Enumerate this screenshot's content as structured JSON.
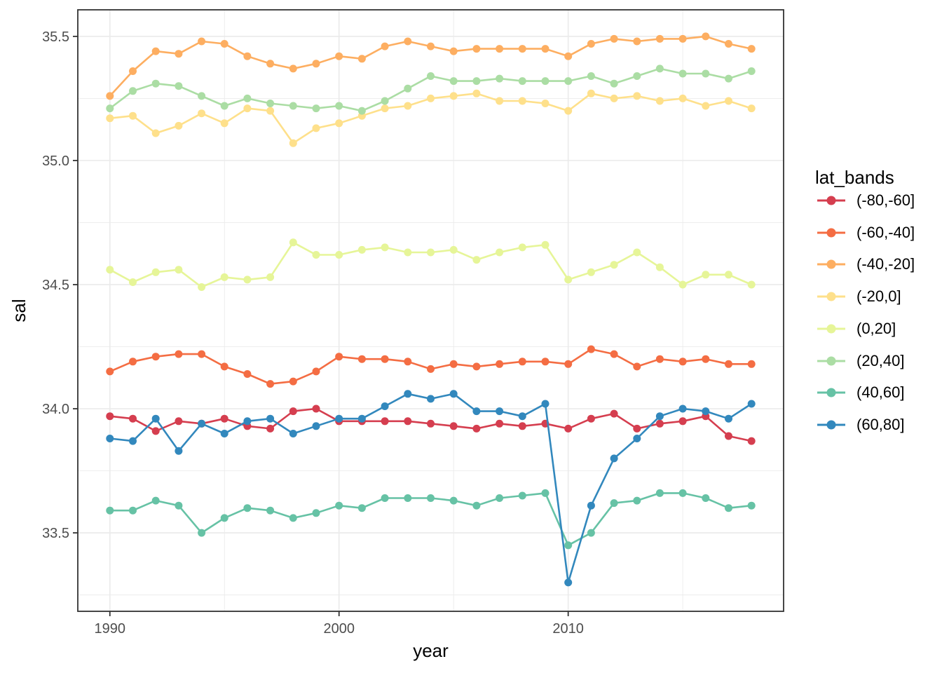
{
  "chart_data": {
    "type": "line",
    "title": "",
    "xlabel": "year",
    "ylabel": "sal",
    "legend_title": "lat_bands",
    "legend_position": "right",
    "grid": true,
    "xlim": [
      1988.6,
      2019.4
    ],
    "ylim": [
      33.184,
      35.607
    ],
    "x_ticks": {
      "values": [
        1990,
        2000,
        2010
      ],
      "labels": [
        "1990",
        "2000",
        "2010"
      ]
    },
    "x_minor_ticks": [
      1995,
      2005,
      2015
    ],
    "y_ticks": {
      "values": [
        33.5,
        34.0,
        34.5,
        35.0,
        35.5
      ],
      "labels": [
        "33.5",
        "34.0",
        "34.5",
        "35.0",
        "35.5"
      ]
    },
    "y_minor_ticks": [
      33.25,
      33.75,
      34.25,
      34.75,
      35.25
    ],
    "x": [
      1990,
      1991,
      1992,
      1993,
      1994,
      1995,
      1996,
      1997,
      1998,
      1999,
      2000,
      2001,
      2002,
      2003,
      2004,
      2005,
      2006,
      2007,
      2008,
      2009,
      2010,
      2011,
      2012,
      2013,
      2014,
      2015,
      2016,
      2017,
      2018
    ],
    "series": [
      {
        "name": "(-80,-60]",
        "color": "#d53e4f",
        "values": [
          33.97,
          33.96,
          33.91,
          33.95,
          33.94,
          33.96,
          33.93,
          33.92,
          33.99,
          34.0,
          33.95,
          33.95,
          33.95,
          33.95,
          33.94,
          33.93,
          33.92,
          33.94,
          33.93,
          33.94,
          33.92,
          33.96,
          33.98,
          33.92,
          33.94,
          33.95,
          33.97,
          33.89,
          33.87
        ]
      },
      {
        "name": "(-60,-40]",
        "color": "#f46d43",
        "values": [
          34.15,
          34.19,
          34.21,
          34.22,
          34.22,
          34.17,
          34.14,
          34.1,
          34.11,
          34.15,
          34.21,
          34.2,
          34.2,
          34.19,
          34.16,
          34.18,
          34.17,
          34.18,
          34.19,
          34.19,
          34.18,
          34.24,
          34.22,
          34.17,
          34.2,
          34.19,
          34.2,
          34.18,
          34.18
        ]
      },
      {
        "name": "(-40,-20]",
        "color": "#fdae61",
        "values": [
          35.26,
          35.36,
          35.44,
          35.43,
          35.48,
          35.47,
          35.42,
          35.39,
          35.37,
          35.39,
          35.42,
          35.41,
          35.46,
          35.48,
          35.46,
          35.44,
          35.45,
          35.45,
          35.45,
          35.45,
          35.42,
          35.47,
          35.49,
          35.48,
          35.49,
          35.49,
          35.5,
          35.47,
          35.45
        ]
      },
      {
        "name": "(-20,0]",
        "color": "#fee08b",
        "values": [
          35.17,
          35.18,
          35.11,
          35.14,
          35.19,
          35.15,
          35.21,
          35.2,
          35.07,
          35.13,
          35.15,
          35.18,
          35.21,
          35.22,
          35.25,
          35.26,
          35.27,
          35.24,
          35.24,
          35.23,
          35.2,
          35.27,
          35.25,
          35.26,
          35.24,
          35.25,
          35.22,
          35.24,
          35.21
        ]
      },
      {
        "name": "(0,20]",
        "color": "#e6f598",
        "values": [
          34.56,
          34.51,
          34.55,
          34.56,
          34.49,
          34.53,
          34.52,
          34.53,
          34.67,
          34.62,
          34.62,
          34.64,
          34.65,
          34.63,
          34.63,
          34.64,
          34.6,
          34.63,
          34.65,
          34.66,
          34.52,
          34.55,
          34.58,
          34.63,
          34.57,
          34.5,
          34.54,
          34.54,
          34.5
        ]
      },
      {
        "name": "(20,40]",
        "color": "#abdda4",
        "values": [
          35.21,
          35.28,
          35.31,
          35.3,
          35.26,
          35.22,
          35.25,
          35.23,
          35.22,
          35.21,
          35.22,
          35.2,
          35.24,
          35.29,
          35.34,
          35.32,
          35.32,
          35.33,
          35.32,
          35.32,
          35.32,
          35.34,
          35.31,
          35.34,
          35.37,
          35.35,
          35.35,
          35.33,
          35.36
        ]
      },
      {
        "name": "(40,60]",
        "color": "#66c2a5",
        "values": [
          33.59,
          33.59,
          33.63,
          33.61,
          33.5,
          33.56,
          33.6,
          33.59,
          33.56,
          33.58,
          33.61,
          33.6,
          33.64,
          33.64,
          33.64,
          33.63,
          33.61,
          33.64,
          33.65,
          33.66,
          33.45,
          33.5,
          33.62,
          33.63,
          33.66,
          33.66,
          33.64,
          33.6,
          33.61
        ]
      },
      {
        "name": "(60,80]",
        "color": "#3288bd",
        "values": [
          33.88,
          33.87,
          33.96,
          33.83,
          33.94,
          33.9,
          33.95,
          33.96,
          33.9,
          33.93,
          33.96,
          33.96,
          34.01,
          34.06,
          34.04,
          34.06,
          33.99,
          33.99,
          33.97,
          34.02,
          33.3,
          33.61,
          33.8,
          33.88,
          33.97,
          34.0,
          33.99,
          33.96,
          34.02
        ]
      }
    ],
    "theme": {
      "panel_background": "#ffffff",
      "panel_border": "#333333",
      "grid_color": "#ebebeb",
      "tick_color": "#333333",
      "tick_label_color": "#4d4d4d",
      "axis_title_color": "#000000"
    }
  }
}
